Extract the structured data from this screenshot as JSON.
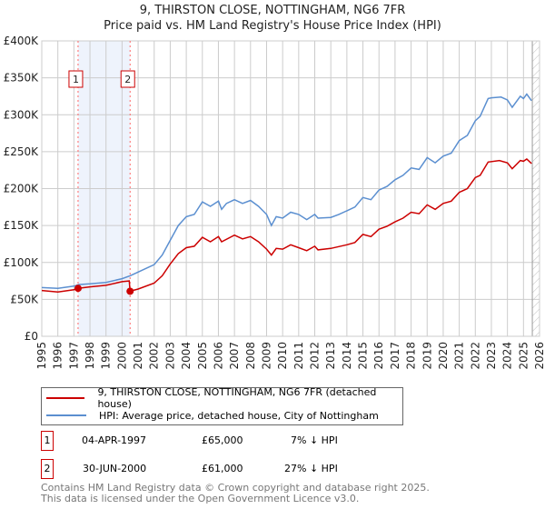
{
  "title": "9, THIRSTON CLOSE, NOTTINGHAM, NG6 7FR",
  "subtitle": "Price paid vs. HM Land Registry's House Price Index (HPI)",
  "chart_data": {
    "type": "line",
    "title": "9, THIRSTON CLOSE, NOTTINGHAM, NG6 7FR",
    "subtitle": "Price paid vs. HM Land Registry's House Price Index (HPI)",
    "xlim": [
      1995,
      2026
    ],
    "ylim": [
      0,
      400000
    ],
    "x_ticks": [
      "1995",
      "1996",
      "1997",
      "1998",
      "1999",
      "2000",
      "2001",
      "2002",
      "2003",
      "2004",
      "2005",
      "2006",
      "2007",
      "2008",
      "2009",
      "2010",
      "2011",
      "2012",
      "2013",
      "2014",
      "2015",
      "2016",
      "2017",
      "2018",
      "2019",
      "2020",
      "2021",
      "2022",
      "2023",
      "2024",
      "2025",
      "2026"
    ],
    "y_ticks": [
      {
        "v": 0,
        "l": "£0"
      },
      {
        "v": 50000,
        "l": "£50K"
      },
      {
        "v": 100000,
        "l": "£100K"
      },
      {
        "v": 150000,
        "l": "£150K"
      },
      {
        "v": 200000,
        "l": "£200K"
      },
      {
        "v": 250000,
        "l": "£250K"
      },
      {
        "v": 300000,
        "l": "£300K"
      },
      {
        "v": 350000,
        "l": "£350K"
      },
      {
        "v": 400000,
        "l": "£400K"
      }
    ],
    "grid": true,
    "series": [
      {
        "name": "9, THIRSTON CLOSE, NOTTINGHAM, NG6 7FR (detached house)",
        "color": "#cc0000",
        "x": [
          1995,
          1996,
          1997,
          1997.25,
          1998,
          1999,
          2000,
          2000.45,
          2000.5,
          2001,
          2002,
          2002.5,
          2003,
          2003.5,
          2004,
          2004.5,
          2005,
          2005.5,
          2006,
          2006.2,
          2007,
          2007.5,
          2008,
          2008.5,
          2009,
          2009.3,
          2009.6,
          2010,
          2010.5,
          2011,
          2011.5,
          2012,
          2012.2,
          2013,
          2014,
          2014.5,
          2015,
          2015.5,
          2016,
          2016.5,
          2017,
          2017.5,
          2018,
          2018.5,
          2019,
          2019.5,
          2020,
          2020.5,
          2021,
          2021.5,
          2022,
          2022.3,
          2022.8,
          2023.5,
          2024,
          2024.3,
          2024.8,
          2025,
          2025.2,
          2025.5
        ],
        "y": [
          62,
          60,
          63,
          65,
          67,
          69,
          74,
          75,
          61,
          64,
          72,
          82,
          98,
          112,
          120,
          122,
          134,
          128,
          135,
          128,
          137,
          132,
          135,
          128,
          118,
          110,
          119,
          118,
          124,
          120,
          116,
          122,
          117,
          119,
          124,
          127,
          138,
          135,
          145,
          149,
          155,
          160,
          168,
          166,
          178,
          172,
          180,
          183,
          195,
          200,
          215,
          218,
          236,
          238,
          235,
          227,
          238,
          237,
          240,
          234
        ]
      },
      {
        "name": "HPI: Average price, detached house, City of Nottingham",
        "color": "#5b8fd0",
        "x": [
          1995,
          1996,
          1997,
          1997.3,
          1998,
          1999,
          2000,
          2000.5,
          2001,
          2002,
          2002.5,
          2003,
          2003.5,
          2004,
          2004.5,
          2005,
          2005.5,
          2006,
          2006.2,
          2006.5,
          2007,
          2007.5,
          2008,
          2008.5,
          2009,
          2009.3,
          2009.6,
          2010,
          2010.5,
          2011,
          2011.5,
          2012,
          2012.2,
          2013,
          2013.5,
          2014,
          2014.5,
          2015,
          2015.5,
          2016,
          2016.5,
          2017,
          2017.5,
          2018,
          2018.5,
          2019,
          2019.5,
          2020,
          2020.5,
          2021,
          2021.5,
          2022,
          2022.3,
          2022.8,
          2023,
          2023.6,
          2024,
          2024.3,
          2024.8,
          2025,
          2025.2,
          2025.5
        ],
        "y": [
          66,
          65,
          68,
          70,
          71,
          73,
          78,
          82,
          87,
          97,
          110,
          130,
          150,
          162,
          165,
          182,
          176,
          183,
          172,
          180,
          185,
          180,
          184,
          176,
          165,
          150,
          162,
          160,
          168,
          165,
          158,
          165,
          160,
          161,
          165,
          170,
          175,
          188,
          185,
          198,
          203,
          212,
          218,
          228,
          226,
          242,
          235,
          244,
          248,
          265,
          272,
          292,
          298,
          322,
          323,
          324,
          320,
          310,
          325,
          322,
          328,
          319
        ]
      }
    ],
    "y_unit_multiplier": 1000,
    "sales": [
      {
        "label": "1",
        "x": 1997.26,
        "y": 65000
      },
      {
        "label": "2",
        "x": 2000.5,
        "y": 61000
      }
    ],
    "legend_placement": "below"
  },
  "legend": {
    "red": "9, THIRSTON CLOSE, NOTTINGHAM, NG6 7FR (detached house)",
    "blue": "HPI: Average price, detached house, City of Nottingham"
  },
  "sales": [
    {
      "num": "1",
      "date": "04-APR-1997",
      "price": "£65,000",
      "hpi": "7% ↓ HPI"
    },
    {
      "num": "2",
      "date": "30-JUN-2000",
      "price": "£61,000",
      "hpi": "27% ↓ HPI"
    }
  ],
  "footer": {
    "line1": "Contains HM Land Registry data © Crown copyright and database right 2025.",
    "line2": "This data is licensed under the Open Government Licence v3.0."
  }
}
